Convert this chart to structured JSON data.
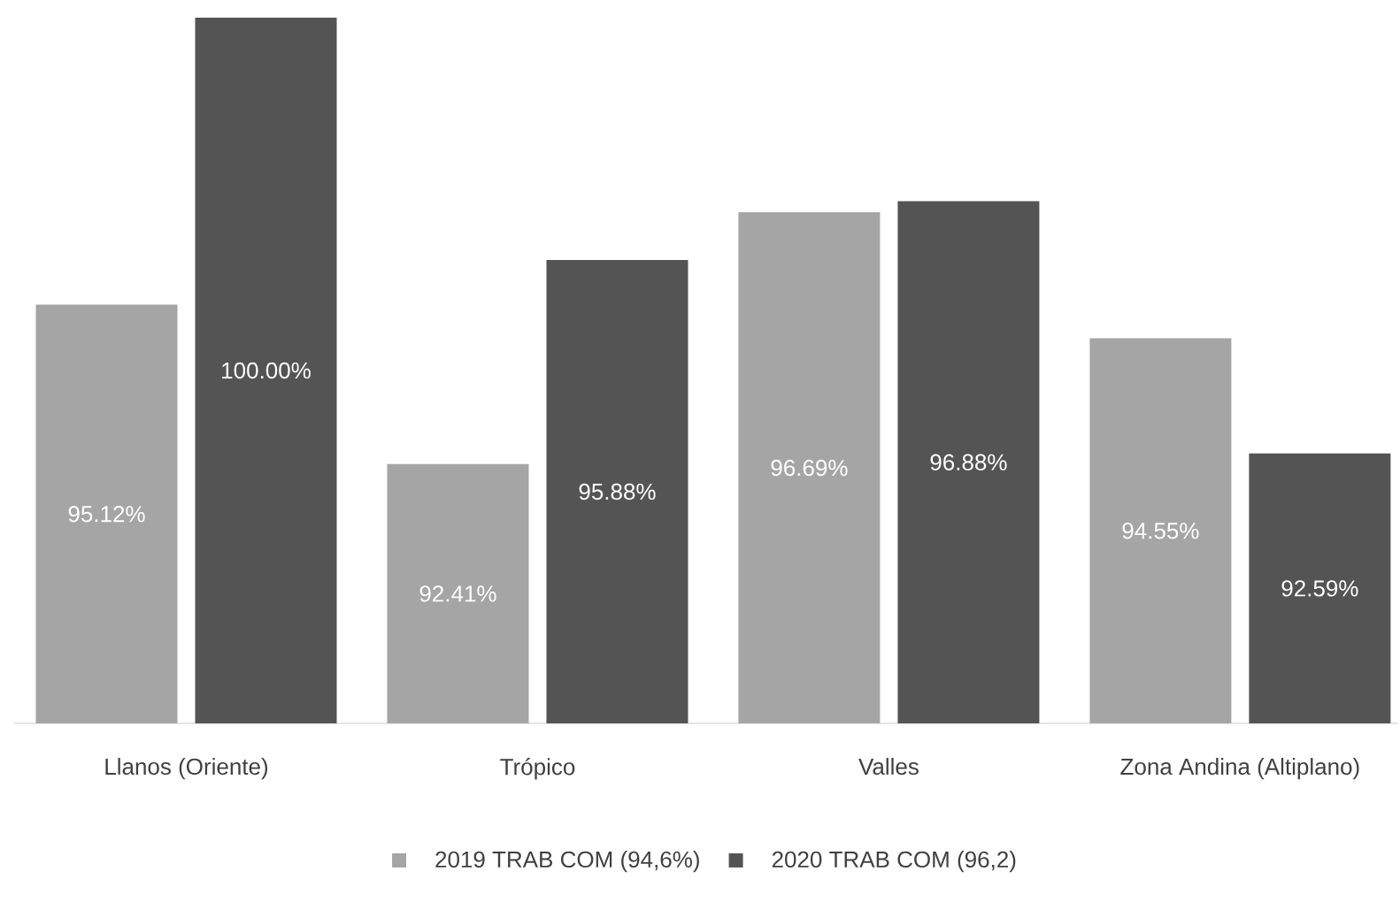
{
  "chart_data": {
    "type": "bar",
    "categories": [
      "Llanos (Oriente)",
      "Trópico",
      "Valles",
      "Zona Andina (Altiplano)"
    ],
    "series": [
      {
        "name": "2019 TRAB COM (94,6%)",
        "color": "#a5a5a5",
        "values": [
          95.12,
          92.41,
          96.69,
          94.55
        ],
        "value_labels": [
          "95.12%",
          "92.41%",
          "96.69%",
          "94.55%"
        ]
      },
      {
        "name": "2020 TRAB COM (96,2)",
        "color": "#545454",
        "values": [
          100.0,
          95.88,
          96.88,
          92.59
        ],
        "value_labels": [
          "100.00%",
          "95.88%",
          "96.88%",
          "92.59%"
        ]
      }
    ],
    "ylim": [
      88,
      100
    ],
    "legend": "bottom"
  }
}
